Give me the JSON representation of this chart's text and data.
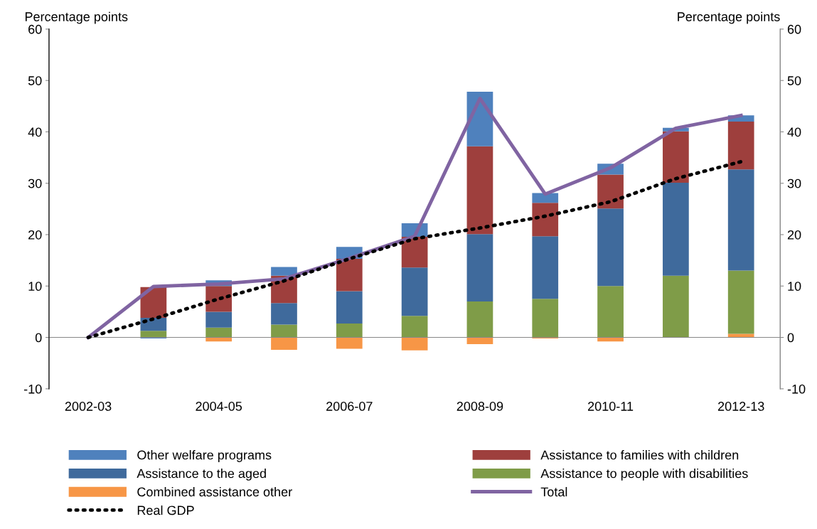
{
  "chart_data": {
    "type": "bar",
    "stacked": true,
    "ylabel": "Percentage points",
    "y2label": "Percentage points",
    "categories": [
      "2002-03",
      null,
      "2004-05",
      null,
      "2006-07",
      null,
      "2008-09",
      null,
      "2010-11",
      null,
      "2012-13"
    ],
    "series": [
      {
        "name": "Combined assistance other",
        "color": "#f79646",
        "values": [
          0,
          0,
          -0.8,
          -2.4,
          -2.2,
          -2.5,
          -1.3,
          -0.2,
          -0.8,
          0,
          0.7
        ]
      },
      {
        "name": "Assistance to people with disabilities",
        "color": "#7f9c48",
        "values": [
          0,
          1.3,
          1.9,
          2.5,
          2.7,
          4.2,
          7.0,
          7.5,
          10.0,
          12.0,
          12.3
        ]
      },
      {
        "name": "Assistance to the aged",
        "color": "#3f6a9c",
        "values": [
          0,
          2.5,
          3.1,
          4.2,
          6.3,
          9.4,
          13.1,
          12.2,
          15.1,
          18.1,
          19.7
        ]
      },
      {
        "name": "Assistance to families with children",
        "color": "#9e3f3d",
        "values": [
          0,
          6.0,
          5.0,
          5.3,
          6.3,
          6.0,
          17.1,
          6.5,
          6.6,
          10.0,
          9.3
        ]
      },
      {
        "name": "Other welfare programs",
        "color": "#4f81bd",
        "values": [
          0,
          -0.2,
          1.1,
          1.7,
          2.3,
          2.6,
          10.6,
          1.9,
          2.1,
          0.7,
          1.2
        ]
      },
      {
        "name": "Total",
        "type": "line",
        "color": "#8064a2",
        "line_style": "solid",
        "values": [
          0,
          9.9,
          10.4,
          11.4,
          15.4,
          19.7,
          46.5,
          27.9,
          33.0,
          40.7,
          43.2
        ]
      },
      {
        "name": "Real GDP",
        "type": "line",
        "color": "#000000",
        "line_style": "dotted",
        "values": [
          0,
          3.6,
          7.5,
          11.0,
          15.3,
          19.2,
          21.3,
          23.6,
          26.4,
          30.9,
          34.2
        ]
      }
    ],
    "ylim": [
      -10,
      60
    ],
    "yticks": [
      -10,
      0,
      10,
      20,
      30,
      40,
      50,
      60
    ],
    "y2lim": [
      -10,
      60
    ],
    "y2ticks": [
      -10,
      0,
      10,
      20,
      30,
      40,
      50,
      60
    ],
    "legend": "bottom"
  }
}
